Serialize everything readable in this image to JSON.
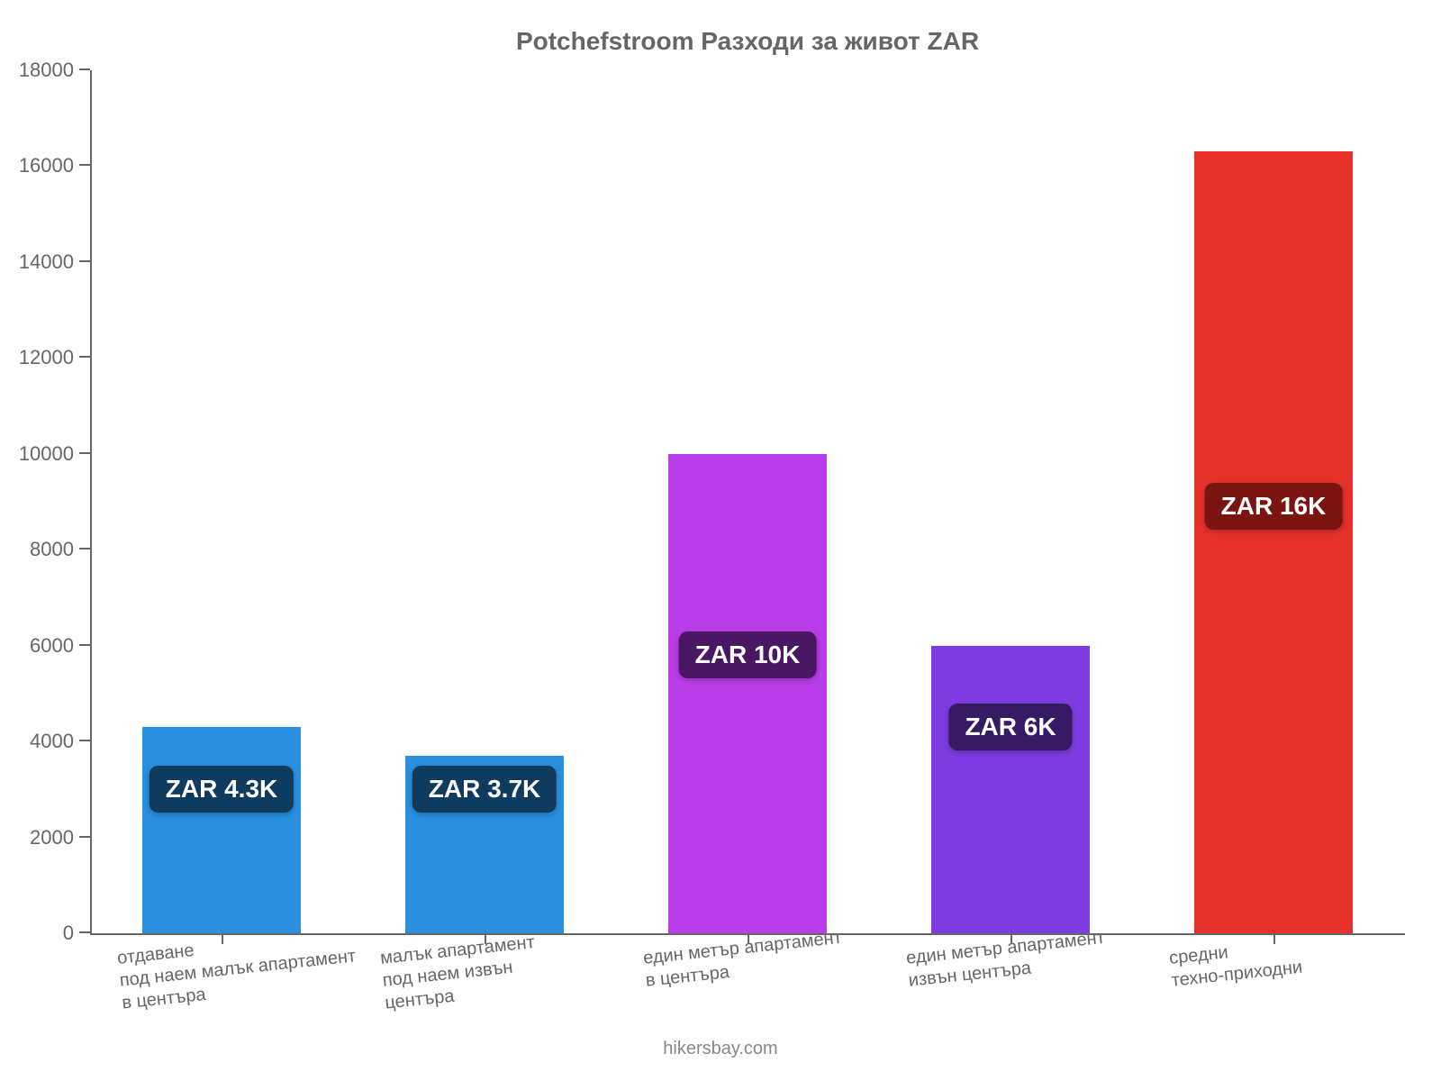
{
  "chart": {
    "type": "bar",
    "title": "Potchefstroom Разходи за живот ZAR",
    "title_color": "#666666",
    "title_fontsize": 28,
    "background_color": "#ffffff",
    "axis_color": "#666666",
    "label_color": "#666666",
    "label_fontsize": 22,
    "xlabel_fontsize": 20,
    "ylim": [
      0,
      18000
    ],
    "ytick_step": 2000,
    "yticks": [
      0,
      2000,
      4000,
      6000,
      8000,
      10000,
      12000,
      14000,
      16000,
      18000
    ],
    "bar_width_pct": 12,
    "gap_pct": 8,
    "side_pad_pct": 4,
    "bars": [
      {
        "category": "отдаване\nпод наем малък апартамент\nв центъра",
        "value": 4300,
        "color": "#2a8fde",
        "badge_text": "ZAR 4.3K",
        "badge_bg": "#0f3b5f",
        "badge_offset_value": 3000
      },
      {
        "category": "малък апартамент\nпод наем извън\nцентъра",
        "value": 3700,
        "color": "#2a8fde",
        "badge_text": "ZAR 3.7K",
        "badge_bg": "#0f3b5f",
        "badge_offset_value": 3000
      },
      {
        "category": "един метър апартамент\nв центъра",
        "value": 10000,
        "color": "#b93de8",
        "badge_text": "ZAR 10K",
        "badge_bg": "#4a1763",
        "badge_offset_value": 5800
      },
      {
        "category": "един метър апартамент\nизвън центъра",
        "value": 6000,
        "color": "#7d3ce0",
        "badge_text": "ZAR 6K",
        "badge_bg": "#361a63",
        "badge_offset_value": 4300
      },
      {
        "category": "средни\nтехно-приходни",
        "value": 16300,
        "color": "#e6312b",
        "badge_text": "ZAR 16K",
        "badge_bg": "#7a1512",
        "badge_offset_value": 8900
      }
    ],
    "attribution": "hikersbay.com",
    "attribution_color": "#888888"
  }
}
